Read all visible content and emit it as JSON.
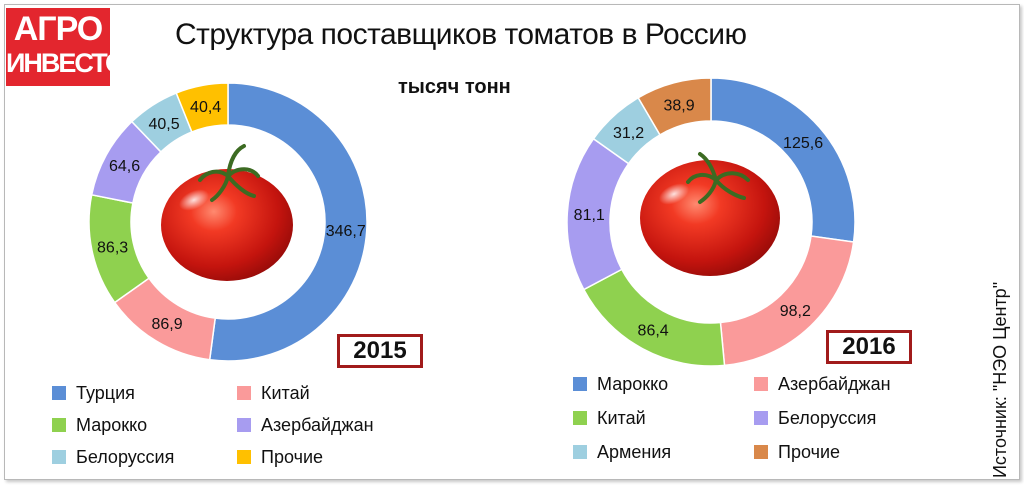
{
  "logo": {
    "line1": "АГРО",
    "line2": "ИНВЕСТОР"
  },
  "title": "Структура поставщиков томатов в Россию",
  "unit": "тысяч тонн",
  "source": "Источник: \"НЭО Центр\"",
  "colors": {
    "blue": "#5b8ed6",
    "pink": "#fa9a9a",
    "green": "#8fd14f",
    "lavender": "#a79cf0",
    "lightblue": "#9ecfe0",
    "yellow": "#ffc000",
    "orange": "#d9884a"
  },
  "chart_data": [
    {
      "type": "pie",
      "donut": true,
      "year": "2015",
      "legend_position": "bottom",
      "slices": [
        {
          "label": "Турция",
          "value": 346.7,
          "display": "346,7",
          "color": "#5b8ed6"
        },
        {
          "label": "Китай",
          "value": 86.9,
          "display": "86,9",
          "color": "#fa9a9a"
        },
        {
          "label": "Марокко",
          "value": 86.3,
          "display": "86,3",
          "color": "#8fd14f"
        },
        {
          "label": "Азербайджан",
          "value": 64.6,
          "display": "64,6",
          "color": "#a79cf0"
        },
        {
          "label": "Белоруссия",
          "value": 40.5,
          "display": "40,5",
          "color": "#9ecfe0"
        },
        {
          "label": "Прочие",
          "value": 40.4,
          "display": "40,4",
          "color": "#ffc000"
        }
      ],
      "legend_order": [
        "Турция",
        "Китай",
        "Марокко",
        "Азербайджан",
        "Белоруссия",
        "Прочие"
      ]
    },
    {
      "type": "pie",
      "donut": true,
      "year": "2016",
      "legend_position": "bottom",
      "slices": [
        {
          "label": "Марокко",
          "value": 125.6,
          "display": "125,6",
          "color": "#5b8ed6"
        },
        {
          "label": "Азербайджан",
          "value": 98.2,
          "display": "98,2",
          "color": "#fa9a9a"
        },
        {
          "label": "Китай",
          "value": 86.4,
          "display": "86,4",
          "color": "#8fd14f"
        },
        {
          "label": "Белоруссия",
          "value": 81.1,
          "display": "81,1",
          "color": "#a79cf0"
        },
        {
          "label": "Армения",
          "value": 31.2,
          "display": "31,2",
          "color": "#9ecfe0"
        },
        {
          "label": "Прочие",
          "value": 38.9,
          "display": "38,9",
          "color": "#d9884a"
        }
      ],
      "legend_order": [
        "Марокко",
        "Азербайджан",
        "Китай",
        "Белоруссия",
        "Армения",
        "Прочие"
      ]
    }
  ]
}
